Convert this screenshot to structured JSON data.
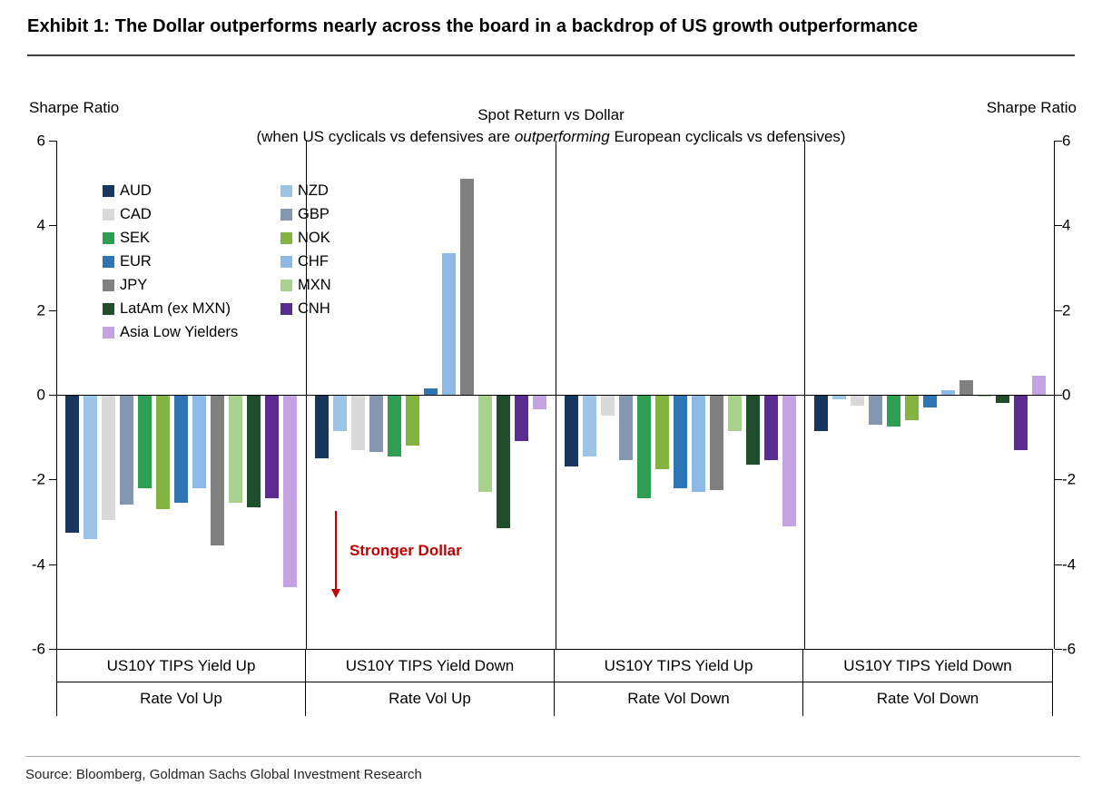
{
  "exhibit_title": "Exhibit 1: The Dollar outperforms nearly across the board in a backdrop of US growth outperformance",
  "source": "Source: Bloomberg, Goldman Sachs Global Investment Research",
  "axis": {
    "left_label": "Sharpe Ratio",
    "right_label": "Sharpe Ratio",
    "ticks": [
      6,
      4,
      2,
      0,
      -2,
      -4,
      -6
    ]
  },
  "annotation": {
    "text": "Stronger Dollar",
    "color": "#C00000"
  },
  "chart_data": {
    "type": "bar",
    "title": "Spot Return vs Dollar",
    "subtitle": {
      "prefix": "(when US cyclicals vs defensives are ",
      "italic": "outperforming",
      "suffix": " European cyclicals vs defensives)"
    },
    "ylabel": "Sharpe Ratio",
    "ylim": [
      -6,
      6
    ],
    "grid": false,
    "legend_position": "upper-left-inside",
    "categories": [
      {
        "line1": "US10Y TIPS Yield Up",
        "line2": "Rate Vol Up"
      },
      {
        "line1": "US10Y TIPS Yield Down",
        "line2": "Rate Vol Up"
      },
      {
        "line1": "US10Y TIPS Yield Up",
        "line2": "Rate Vol Down"
      },
      {
        "line1": "US10Y TIPS Yield Down",
        "line2": "Rate Vol Down"
      }
    ],
    "series": [
      {
        "name": "AUD",
        "color": "#17375E",
        "values": [
          -3.25,
          -1.5,
          -1.7,
          -0.85
        ]
      },
      {
        "name": "NZD",
        "color": "#9DC3E6",
        "values": [
          -3.4,
          -0.85,
          -1.45,
          -0.1
        ]
      },
      {
        "name": "CAD",
        "color": "#D9D9D9",
        "values": [
          -2.95,
          -1.3,
          -0.5,
          -0.25
        ]
      },
      {
        "name": "GBP",
        "color": "#8496B0",
        "values": [
          -2.6,
          -1.35,
          -1.55,
          -0.7
        ]
      },
      {
        "name": "SEK",
        "color": "#2E9E52",
        "values": [
          -2.2,
          -1.45,
          -2.45,
          -0.75
        ]
      },
      {
        "name": "NOK",
        "color": "#83B441",
        "values": [
          -2.7,
          -1.2,
          -1.75,
          -0.6
        ]
      },
      {
        "name": "EUR",
        "color": "#2E75B6",
        "values": [
          -2.55,
          0.15,
          -2.2,
          -0.3
        ]
      },
      {
        "name": "CHF",
        "color": "#8DB9E6",
        "values": [
          -2.2,
          3.35,
          -2.3,
          0.1
        ]
      },
      {
        "name": "JPY",
        "color": "#808080",
        "values": [
          -3.55,
          5.1,
          -2.25,
          0.35
        ]
      },
      {
        "name": "MXN",
        "color": "#A9D18E",
        "values": [
          -2.55,
          -2.3,
          -0.85,
          -0.05
        ]
      },
      {
        "name": "LatAm (ex MXN)",
        "color": "#1F4E2C",
        "values": [
          -2.65,
          -3.15,
          -1.65,
          -0.2
        ]
      },
      {
        "name": "CNH",
        "color": "#5B2C8F",
        "values": [
          -2.45,
          -1.1,
          -1.55,
          -1.3
        ]
      },
      {
        "name": "Asia Low Yielders",
        "color": "#C5A3E2",
        "values": [
          -4.55,
          -0.35,
          -3.1,
          0.45
        ]
      }
    ]
  }
}
